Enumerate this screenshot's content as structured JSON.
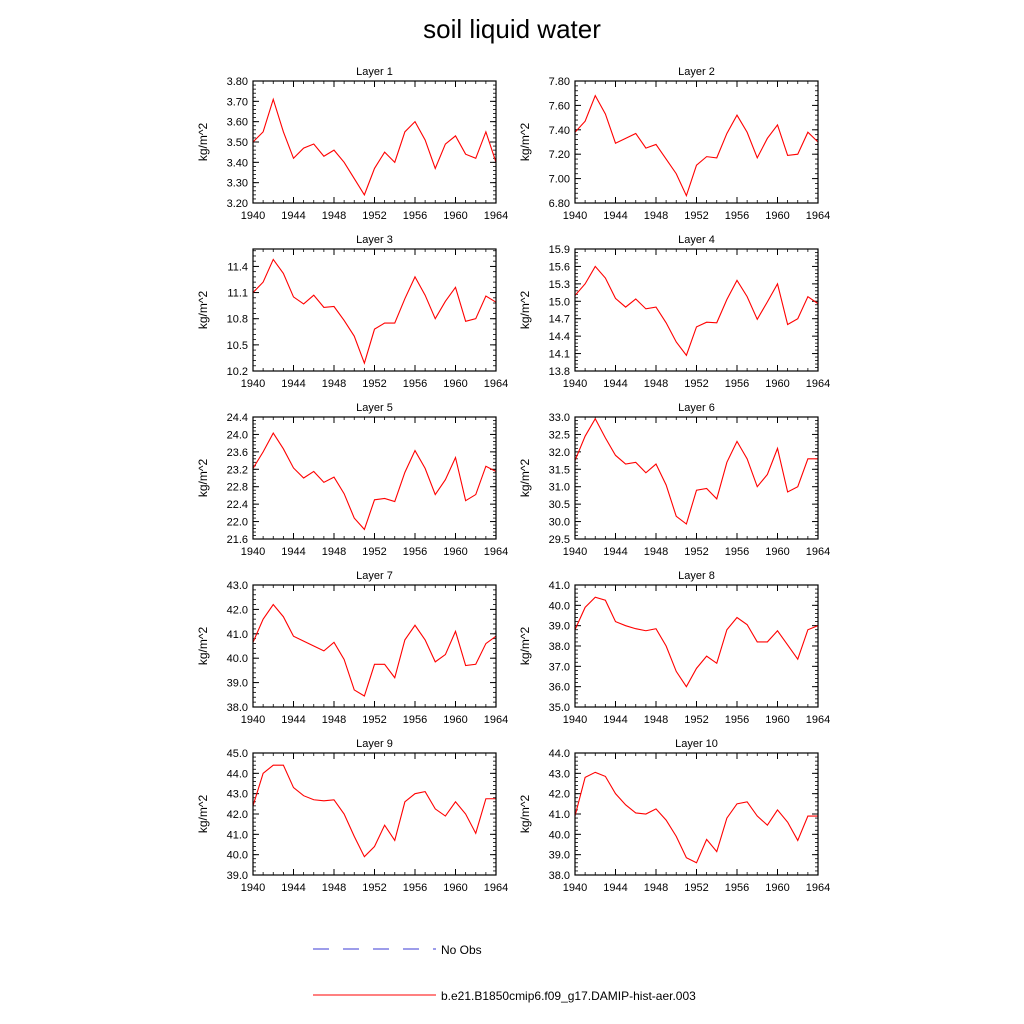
{
  "title": "soil liquid water",
  "legend": {
    "obs_label": "No Obs",
    "model_label": "b.e21.B1850cmip6.f09_g17.DAMIP-hist-aer.003",
    "obs_color": "#3b3bd6",
    "model_color": "#ff0000"
  },
  "chart_data": [
    {
      "type": "line",
      "title": "Layer 1",
      "ylabel": "kg/m^2",
      "xlim": [
        1940,
        1964
      ],
      "ylim": [
        3.2,
        3.8
      ],
      "xticks": [
        "1940",
        "1944",
        "1948",
        "1952",
        "1956",
        "1960",
        "1964"
      ],
      "yticks": [
        "3.20",
        "3.30",
        "3.40",
        "3.50",
        "3.60",
        "3.70",
        "3.80"
      ],
      "x": [
        1940,
        1941,
        1942,
        1943,
        1944,
        1945,
        1946,
        1947,
        1948,
        1949,
        1950,
        1951,
        1952,
        1953,
        1954,
        1955,
        1956,
        1957,
        1958,
        1959,
        1960,
        1961,
        1962,
        1963,
        1964
      ],
      "series": [
        {
          "name": "b.e21.B1850cmip6.f09_g17.DAMIP-hist-aer.003",
          "values": [
            3.5,
            3.55,
            3.71,
            3.55,
            3.42,
            3.47,
            3.49,
            3.43,
            3.46,
            3.4,
            3.32,
            3.24,
            3.37,
            3.45,
            3.4,
            3.55,
            3.6,
            3.51,
            3.37,
            3.49,
            3.53,
            3.44,
            3.42,
            3.55,
            3.4
          ]
        }
      ]
    },
    {
      "type": "line",
      "title": "Layer 2",
      "ylabel": "kg/m^2",
      "xlim": [
        1940,
        1964
      ],
      "ylim": [
        6.8,
        7.8
      ],
      "xticks": [
        "1940",
        "1944",
        "1948",
        "1952",
        "1956",
        "1960",
        "1964"
      ],
      "yticks": [
        "6.80",
        "7.00",
        "7.20",
        "7.40",
        "7.60",
        "7.80"
      ],
      "x": [
        1940,
        1941,
        1942,
        1943,
        1944,
        1945,
        1946,
        1947,
        1948,
        1949,
        1950,
        1951,
        1952,
        1953,
        1954,
        1955,
        1956,
        1957,
        1958,
        1959,
        1960,
        1961,
        1962,
        1963,
        1964
      ],
      "series": [
        {
          "name": "b.e21.B1850cmip6.f09_g17.DAMIP-hist-aer.003",
          "values": [
            7.38,
            7.47,
            7.68,
            7.53,
            7.29,
            7.33,
            7.37,
            7.25,
            7.28,
            7.16,
            7.04,
            6.86,
            7.11,
            7.18,
            7.17,
            7.37,
            7.52,
            7.38,
            7.17,
            7.33,
            7.44,
            7.19,
            7.2,
            7.38,
            7.3
          ]
        }
      ]
    },
    {
      "type": "line",
      "title": "Layer 3",
      "ylabel": "kg/m^2",
      "xlim": [
        1940,
        1964
      ],
      "ylim": [
        10.2,
        11.6
      ],
      "xticks": [
        "1940",
        "1944",
        "1948",
        "1952",
        "1956",
        "1960",
        "1964"
      ],
      "yticks": [
        "10.2",
        "10.5",
        "10.8",
        "11.1",
        "11.4"
      ],
      "x": [
        1940,
        1941,
        1942,
        1943,
        1944,
        1945,
        1946,
        1947,
        1948,
        1949,
        1950,
        1951,
        1952,
        1953,
        1954,
        1955,
        1956,
        1957,
        1958,
        1959,
        1960,
        1961,
        1962,
        1963,
        1964
      ],
      "series": [
        {
          "name": "b.e21.B1850cmip6.f09_g17.DAMIP-hist-aer.003",
          "values": [
            11.1,
            11.22,
            11.48,
            11.32,
            11.05,
            10.97,
            11.07,
            10.93,
            10.94,
            10.78,
            10.6,
            10.29,
            10.68,
            10.75,
            10.75,
            11.03,
            11.28,
            11.07,
            10.8,
            11.0,
            11.16,
            10.77,
            10.8,
            11.06,
            10.99
          ]
        }
      ]
    },
    {
      "type": "line",
      "title": "Layer 4",
      "ylabel": "kg/m^2",
      "xlim": [
        1940,
        1964
      ],
      "ylim": [
        13.8,
        15.9
      ],
      "xticks": [
        "1940",
        "1944",
        "1948",
        "1952",
        "1956",
        "1960",
        "1964"
      ],
      "yticks": [
        "13.8",
        "14.1",
        "14.4",
        "14.7",
        "15.0",
        "15.3",
        "15.6",
        "15.9"
      ],
      "x": [
        1940,
        1941,
        1942,
        1943,
        1944,
        1945,
        1946,
        1947,
        1948,
        1949,
        1950,
        1951,
        1952,
        1953,
        1954,
        1955,
        1956,
        1957,
        1958,
        1959,
        1960,
        1961,
        1962,
        1963,
        1964
      ],
      "series": [
        {
          "name": "b.e21.B1850cmip6.f09_g17.DAMIP-hist-aer.003",
          "values": [
            15.1,
            15.3,
            15.6,
            15.4,
            15.05,
            14.9,
            15.04,
            14.87,
            14.9,
            14.63,
            14.3,
            14.07,
            14.56,
            14.64,
            14.63,
            15.03,
            15.36,
            15.08,
            14.69,
            14.99,
            15.3,
            14.6,
            14.7,
            15.08,
            14.96
          ]
        }
      ]
    },
    {
      "type": "line",
      "title": "Layer 5",
      "ylabel": "kg/m^2",
      "xlim": [
        1940,
        1964
      ],
      "ylim": [
        21.6,
        24.4
      ],
      "xticks": [
        "1940",
        "1944",
        "1948",
        "1952",
        "1956",
        "1960",
        "1964"
      ],
      "yticks": [
        "21.6",
        "22.0",
        "22.4",
        "22.8",
        "23.2",
        "23.6",
        "24.0",
        "24.4"
      ],
      "x": [
        1940,
        1941,
        1942,
        1943,
        1944,
        1945,
        1946,
        1947,
        1948,
        1949,
        1950,
        1951,
        1952,
        1953,
        1954,
        1955,
        1956,
        1957,
        1958,
        1959,
        1960,
        1961,
        1962,
        1963,
        1964
      ],
      "series": [
        {
          "name": "b.e21.B1850cmip6.f09_g17.DAMIP-hist-aer.003",
          "values": [
            23.22,
            23.6,
            24.03,
            23.67,
            23.23,
            23.0,
            23.15,
            22.9,
            23.02,
            22.64,
            22.08,
            21.82,
            22.5,
            22.53,
            22.46,
            23.13,
            23.63,
            23.22,
            22.62,
            22.96,
            23.47,
            22.48,
            22.62,
            23.27,
            23.15
          ]
        }
      ]
    },
    {
      "type": "line",
      "title": "Layer 6",
      "ylabel": "kg/m^2",
      "xlim": [
        1940,
        1964
      ],
      "ylim": [
        29.5,
        33.0
      ],
      "xticks": [
        "1940",
        "1944",
        "1948",
        "1952",
        "1956",
        "1960",
        "1964"
      ],
      "yticks": [
        "29.5",
        "30.0",
        "30.5",
        "31.0",
        "31.5",
        "32.0",
        "32.5",
        "33.0"
      ],
      "x": [
        1940,
        1941,
        1942,
        1943,
        1944,
        1945,
        1946,
        1947,
        1948,
        1949,
        1950,
        1951,
        1952,
        1953,
        1954,
        1955,
        1956,
        1957,
        1958,
        1959,
        1960,
        1961,
        1962,
        1963,
        1964
      ],
      "series": [
        {
          "name": "b.e21.B1850cmip6.f09_g17.DAMIP-hist-aer.003",
          "values": [
            31.75,
            32.45,
            32.95,
            32.4,
            31.9,
            31.65,
            31.7,
            31.4,
            31.65,
            31.05,
            30.15,
            29.93,
            30.9,
            30.95,
            30.65,
            31.7,
            32.3,
            31.8,
            31.0,
            31.35,
            32.1,
            30.85,
            31.0,
            31.8,
            31.8
          ]
        }
      ]
    },
    {
      "type": "line",
      "title": "Layer 7",
      "ylabel": "kg/m^2",
      "xlim": [
        1940,
        1964
      ],
      "ylim": [
        38.0,
        43.0
      ],
      "xticks": [
        "1940",
        "1944",
        "1948",
        "1952",
        "1956",
        "1960",
        "1964"
      ],
      "yticks": [
        "38.0",
        "39.0",
        "40.0",
        "41.0",
        "42.0",
        "43.0"
      ],
      "x": [
        1940,
        1941,
        1942,
        1943,
        1944,
        1945,
        1946,
        1947,
        1948,
        1949,
        1950,
        1951,
        1952,
        1953,
        1954,
        1955,
        1956,
        1957,
        1958,
        1959,
        1960,
        1961,
        1962,
        1963,
        1964
      ],
      "series": [
        {
          "name": "b.e21.B1850cmip6.f09_g17.DAMIP-hist-aer.003",
          "values": [
            40.65,
            41.6,
            42.2,
            41.7,
            40.9,
            40.7,
            40.5,
            40.3,
            40.65,
            39.95,
            38.7,
            38.45,
            39.75,
            39.75,
            39.2,
            40.75,
            41.35,
            40.75,
            39.85,
            40.15,
            41.1,
            39.7,
            39.75,
            40.6,
            40.9
          ]
        }
      ]
    },
    {
      "type": "line",
      "title": "Layer 8",
      "ylabel": "kg/m^2",
      "xlim": [
        1940,
        1964
      ],
      "ylim": [
        35.0,
        41.0
      ],
      "xticks": [
        "1940",
        "1944",
        "1948",
        "1952",
        "1956",
        "1960",
        "1964"
      ],
      "yticks": [
        "35.0",
        "36.0",
        "37.0",
        "38.0",
        "39.0",
        "40.0",
        "41.0"
      ],
      "x": [
        1940,
        1941,
        1942,
        1943,
        1944,
        1945,
        1946,
        1947,
        1948,
        1949,
        1950,
        1951,
        1952,
        1953,
        1954,
        1955,
        1956,
        1957,
        1958,
        1959,
        1960,
        1961,
        1962,
        1963,
        1964
      ],
      "series": [
        {
          "name": "b.e21.B1850cmip6.f09_g17.DAMIP-hist-aer.003",
          "values": [
            38.8,
            39.9,
            40.4,
            40.25,
            39.2,
            39.0,
            38.85,
            38.75,
            38.85,
            38.0,
            36.75,
            36.0,
            36.9,
            37.5,
            37.15,
            38.8,
            39.4,
            39.05,
            38.2,
            38.2,
            38.75,
            38.05,
            37.35,
            38.8,
            39.0
          ]
        }
      ]
    },
    {
      "type": "line",
      "title": "Layer 9",
      "ylabel": "kg/m^2",
      "xlim": [
        1940,
        1964
      ],
      "ylim": [
        39.0,
        45.0
      ],
      "xticks": [
        "1940",
        "1944",
        "1948",
        "1952",
        "1956",
        "1960",
        "1964"
      ],
      "yticks": [
        "39.0",
        "40.0",
        "41.0",
        "42.0",
        "43.0",
        "44.0",
        "45.0"
      ],
      "x": [
        1940,
        1941,
        1942,
        1943,
        1944,
        1945,
        1946,
        1947,
        1948,
        1949,
        1950,
        1951,
        1952,
        1953,
        1954,
        1955,
        1956,
        1957,
        1958,
        1959,
        1960,
        1961,
        1962,
        1963,
        1964
      ],
      "series": [
        {
          "name": "b.e21.B1850cmip6.f09_g17.DAMIP-hist-aer.003",
          "values": [
            42.4,
            44.0,
            44.4,
            44.4,
            43.3,
            42.9,
            42.7,
            42.65,
            42.7,
            42.0,
            40.9,
            39.9,
            40.4,
            41.45,
            40.7,
            42.6,
            43.0,
            43.1,
            42.25,
            41.9,
            42.6,
            42.0,
            41.05,
            42.75,
            42.75
          ]
        }
      ]
    },
    {
      "type": "line",
      "title": "Layer 10",
      "ylabel": "kg/m^2",
      "xlim": [
        1940,
        1964
      ],
      "ylim": [
        38.0,
        44.0
      ],
      "xticks": [
        "1940",
        "1944",
        "1948",
        "1952",
        "1956",
        "1960",
        "1964"
      ],
      "yticks": [
        "38.0",
        "39.0",
        "40.0",
        "41.0",
        "42.0",
        "43.0",
        "44.0"
      ],
      "x": [
        1940,
        1941,
        1942,
        1943,
        1944,
        1945,
        1946,
        1947,
        1948,
        1949,
        1950,
        1951,
        1952,
        1953,
        1954,
        1955,
        1956,
        1957,
        1958,
        1959,
        1960,
        1961,
        1962,
        1963,
        1964
      ],
      "series": [
        {
          "name": "b.e21.B1850cmip6.f09_g17.DAMIP-hist-aer.003",
          "values": [
            40.9,
            42.8,
            43.05,
            42.85,
            42.0,
            41.45,
            41.05,
            41.0,
            41.25,
            40.7,
            39.9,
            38.85,
            38.6,
            39.75,
            39.15,
            40.8,
            41.5,
            41.6,
            40.9,
            40.45,
            41.2,
            40.6,
            39.7,
            40.9,
            40.9
          ]
        }
      ]
    }
  ]
}
